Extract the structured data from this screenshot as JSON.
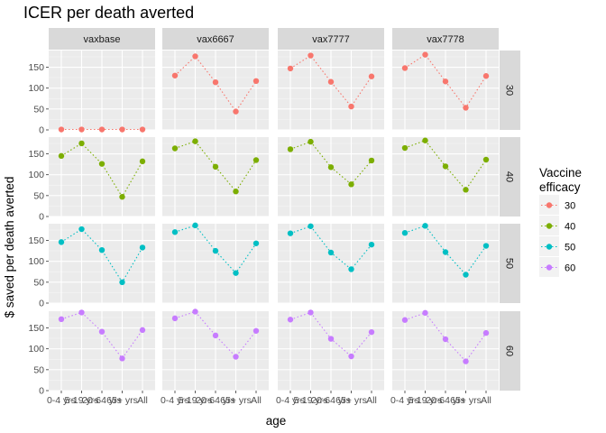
{
  "chart_data": {
    "type": "line",
    "title": "ICER per death averted",
    "xlabel": "age",
    "ylabel": "$ saved per death averted",
    "categories": [
      "0-4 yrs",
      "5-19 yrs",
      "20-64 yrs",
      "65+ yrs",
      "All"
    ],
    "ylim": [
      0,
      190
    ],
    "yticks": [
      0,
      50,
      100,
      150
    ],
    "grid": true,
    "line_style": "dotted",
    "columns": [
      "vaxbase",
      "vax6667",
      "vax7777",
      "vax7778"
    ],
    "rows": [
      "30",
      "40",
      "50",
      "60"
    ],
    "legend": {
      "title_lines": [
        "Vaccine",
        "efficacy"
      ],
      "position": "right",
      "entries": [
        {
          "name": "30",
          "color": "#F8766D"
        },
        {
          "name": "40",
          "color": "#7CAE00"
        },
        {
          "name": "50",
          "color": "#00BFC4"
        },
        {
          "name": "60",
          "color": "#C77CFF"
        }
      ]
    },
    "panels": [
      {
        "column": "vaxbase",
        "row": "30",
        "values": [
          1,
          1,
          1,
          1,
          1
        ]
      },
      {
        "column": "vax6667",
        "row": "30",
        "values": [
          130,
          176,
          114,
          44,
          117
        ]
      },
      {
        "column": "vax7777",
        "row": "30",
        "values": [
          147,
          178,
          115,
          56,
          128
        ]
      },
      {
        "column": "vax7778",
        "row": "30",
        "values": [
          148,
          180,
          116,
          53,
          129
        ]
      },
      {
        "column": "vaxbase",
        "row": "40",
        "values": [
          145,
          175,
          126,
          47,
          132
        ]
      },
      {
        "column": "vax6667",
        "row": "40",
        "values": [
          163,
          180,
          119,
          60,
          135
        ]
      },
      {
        "column": "vax7777",
        "row": "40",
        "values": [
          161,
          179,
          118,
          77,
          134
        ]
      },
      {
        "column": "vax7778",
        "row": "40",
        "values": [
          164,
          182,
          120,
          64,
          136
        ]
      },
      {
        "column": "vaxbase",
        "row": "50",
        "values": [
          146,
          177,
          127,
          50,
          133
        ]
      },
      {
        "column": "vax6667",
        "row": "50",
        "values": [
          170,
          186,
          125,
          72,
          143
        ]
      },
      {
        "column": "vax7777",
        "row": "50",
        "values": [
          167,
          184,
          121,
          81,
          140
        ]
      },
      {
        "column": "vax7778",
        "row": "50",
        "values": [
          168,
          185,
          122,
          68,
          137
        ]
      },
      {
        "column": "vaxbase",
        "row": "60",
        "values": [
          171,
          187,
          141,
          77,
          145
        ]
      },
      {
        "column": "vax6667",
        "row": "60",
        "values": [
          173,
          189,
          132,
          81,
          143
        ]
      },
      {
        "column": "vax7777",
        "row": "60",
        "values": [
          170,
          187,
          124,
          82,
          140
        ]
      },
      {
        "column": "vax7778",
        "row": "60",
        "values": [
          169,
          186,
          123,
          70,
          138
        ]
      }
    ]
  }
}
